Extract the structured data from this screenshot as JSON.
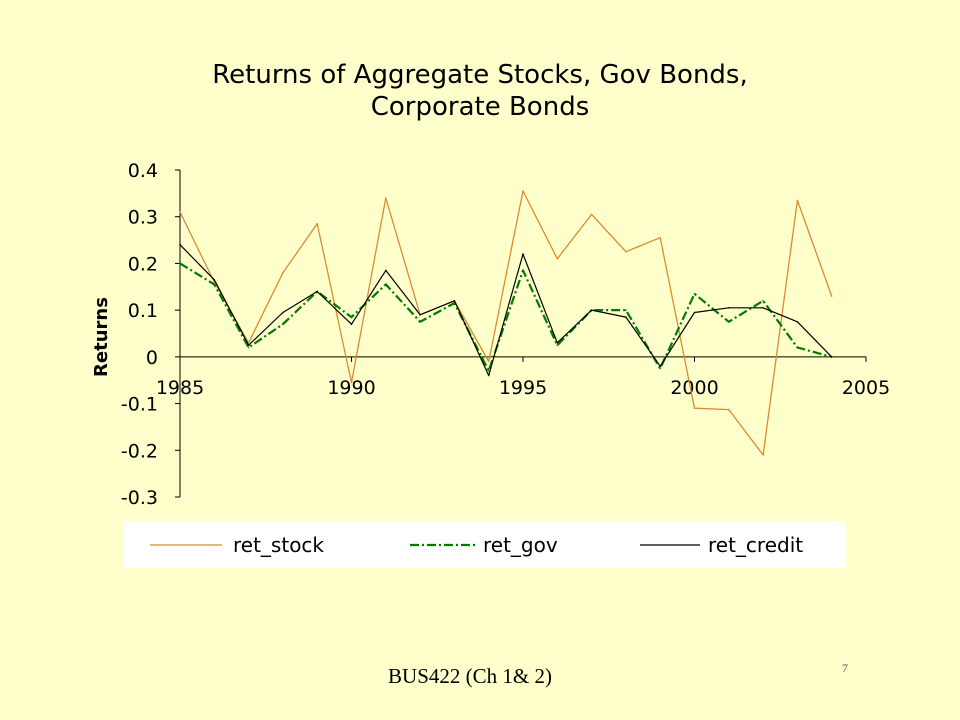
{
  "slide": {
    "footer": "BUS422 (Ch 1& 2)",
    "page_number": "7",
    "background": "#FFFFCC"
  },
  "chart_data": {
    "type": "line",
    "title": "Returns of Aggregate Stocks, Gov Bonds, Corporate Bonds",
    "ylabel": "Returns",
    "x": [
      1985,
      1986,
      1987,
      1988,
      1989,
      1990,
      1991,
      1992,
      1993,
      1994,
      1995,
      1996,
      1997,
      1998,
      1999,
      2000,
      2001,
      2002,
      2003,
      2004
    ],
    "xlim": [
      1985,
      2005
    ],
    "ylim": [
      -0.3,
      0.4
    ],
    "xticks": [
      1985,
      1990,
      1995,
      2000,
      2005
    ],
    "yticks": [
      0.4,
      0.3,
      0.2,
      0.1,
      0,
      -0.1,
      -0.2,
      -0.3
    ],
    "grid": false,
    "legend": "bottom",
    "series": [
      {
        "name": "ret_stock",
        "color": "#DB8B2F",
        "style": "solid",
        "values": [
          0.31,
          0.16,
          0.03,
          0.18,
          0.285,
          -0.055,
          0.34,
          0.09,
          0.12,
          -0.01,
          0.355,
          0.21,
          0.305,
          0.225,
          0.255,
          -0.11,
          -0.113,
          -0.21,
          0.335,
          0.13
        ]
      },
      {
        "name": "ret_gov",
        "color": "#007A00",
        "style": "dash-dot",
        "values": [
          0.2,
          0.155,
          0.02,
          0.07,
          0.14,
          0.085,
          0.155,
          0.075,
          0.115,
          -0.03,
          0.185,
          0.025,
          0.1,
          0.1,
          -0.025,
          0.135,
          0.075,
          0.12,
          0.02,
          0.0
        ]
      },
      {
        "name": "ret_credit",
        "color": "#000000",
        "style": "solid",
        "values": [
          0.24,
          0.165,
          0.025,
          0.095,
          0.14,
          0.07,
          0.185,
          0.09,
          0.12,
          -0.04,
          0.22,
          0.03,
          0.1,
          0.085,
          -0.02,
          0.095,
          0.105,
          0.105,
          0.075,
          0.0
        ]
      }
    ]
  }
}
